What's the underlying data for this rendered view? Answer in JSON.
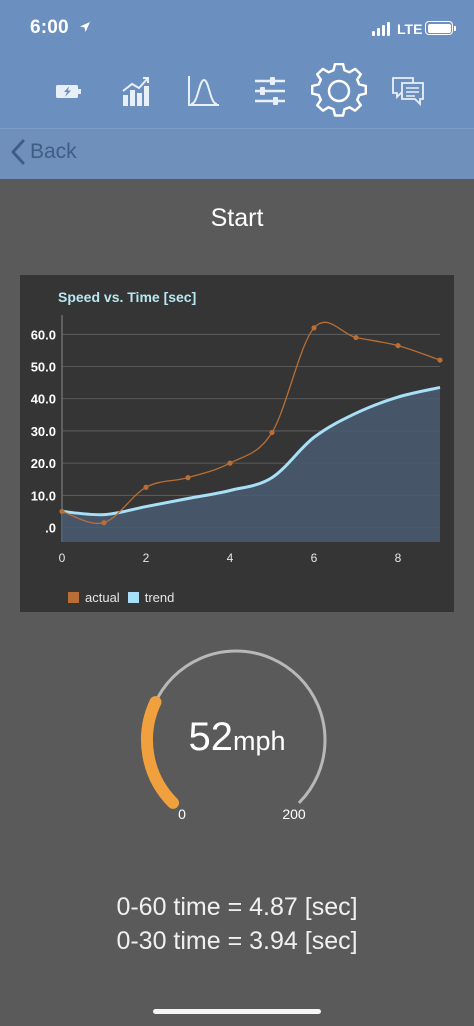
{
  "status_bar": {
    "time": "6:00",
    "network": "LTE"
  },
  "toolbar": {
    "icons": [
      "battery-charging-icon",
      "bar-chart-icon",
      "bell-curve-icon",
      "sliders-icon",
      "gear-icon",
      "chat-icon"
    ],
    "active": "gear-icon"
  },
  "nav": {
    "back_label": "Back"
  },
  "screen": {
    "title": "Start"
  },
  "chart_data": {
    "type": "line",
    "title": "Speed vs. Time [sec]",
    "x_ticks": [
      "0",
      "2",
      "4",
      "6",
      "8"
    ],
    "y_ticks": [
      ".0",
      "10.0",
      "20.0",
      "30.0",
      "40.0",
      "50.0",
      "60.0"
    ],
    "xlim": [
      0,
      9
    ],
    "ylim": [
      -4.5,
      66
    ],
    "grid": true,
    "legend_position": "bottom-left",
    "series": [
      {
        "name": "actual",
        "color": "#b86e35",
        "type": "line",
        "x": [
          0,
          1,
          2,
          3,
          4,
          5,
          6,
          7,
          8,
          9
        ],
        "y": [
          5,
          1.5,
          12.5,
          15.5,
          20,
          29.5,
          62,
          59,
          56.5,
          52
        ]
      },
      {
        "name": "trend",
        "color": "#a8e0f8",
        "type": "area",
        "x": [
          0,
          1,
          2,
          3,
          4,
          5,
          6,
          7,
          8,
          9
        ],
        "y": [
          5,
          4,
          6.5,
          9,
          11.5,
          15.5,
          28,
          35.5,
          40.5,
          43.5
        ]
      }
    ]
  },
  "gauge": {
    "value": "52",
    "unit": "mph",
    "min_label": "0",
    "max_label": "200",
    "min": 0,
    "max": 200,
    "fill_color": "#f0a03c"
  },
  "stats": {
    "line1": "0-60 time = 4.87 [sec]",
    "line2": "0-30 time = 3.94 [sec]"
  }
}
